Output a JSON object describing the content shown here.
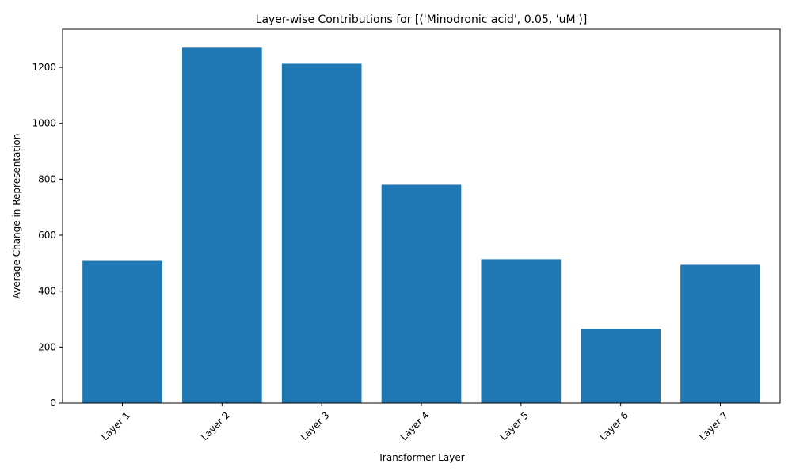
{
  "chart_data": {
    "type": "bar",
    "title": "Layer-wise Contributions for [('Minodronic acid', 0.05, 'uM')]",
    "xlabel": "Transformer Layer",
    "ylabel": "Average Change in Representation",
    "categories": [
      "Layer 1",
      "Layer 2",
      "Layer 3",
      "Layer 4",
      "Layer 5",
      "Layer 6",
      "Layer 7"
    ],
    "values": [
      508,
      1270,
      1213,
      780,
      514,
      265,
      494
    ],
    "ylim": [
      0,
      1336
    ],
    "yticks": [
      0,
      200,
      400,
      600,
      800,
      1000,
      1200
    ],
    "grid": false,
    "bar_color": "#1f77b4",
    "x_tick_rotation": 45
  }
}
